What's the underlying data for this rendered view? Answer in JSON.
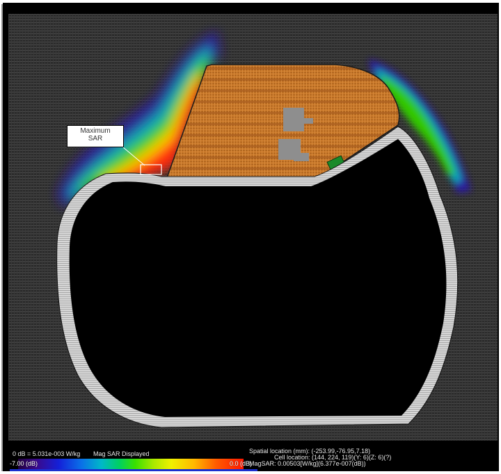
{
  "viewport": {
    "annotation": {
      "line1": "Maximum",
      "line2": "SAR"
    }
  },
  "status": {
    "reference": "0 dB = 5.031e-003 W/kg",
    "display_mode": "Mag SAR Displayed",
    "spatial_location": "Spatial location (mm): (-253.99,-76.95,7.18)",
    "cell_location": "Cell location: (144, 224, 119)(Y: 6)(Z: 6)(?)",
    "mag_sar": "MagSAR: 0.00503[W/kg](6.377e-007(dB))"
  },
  "colorbar": {
    "min_label": "-7.00 (dB)",
    "max_label": "0.0 (dB)"
  },
  "colors": {
    "background_grid": "#303030",
    "body_tissue": "#cc7a2a",
    "skin_outline": "#b0b0b0",
    "cavity": "#000000",
    "inclusion": "#8e8e8e",
    "sensor": "#1a8a2a"
  }
}
